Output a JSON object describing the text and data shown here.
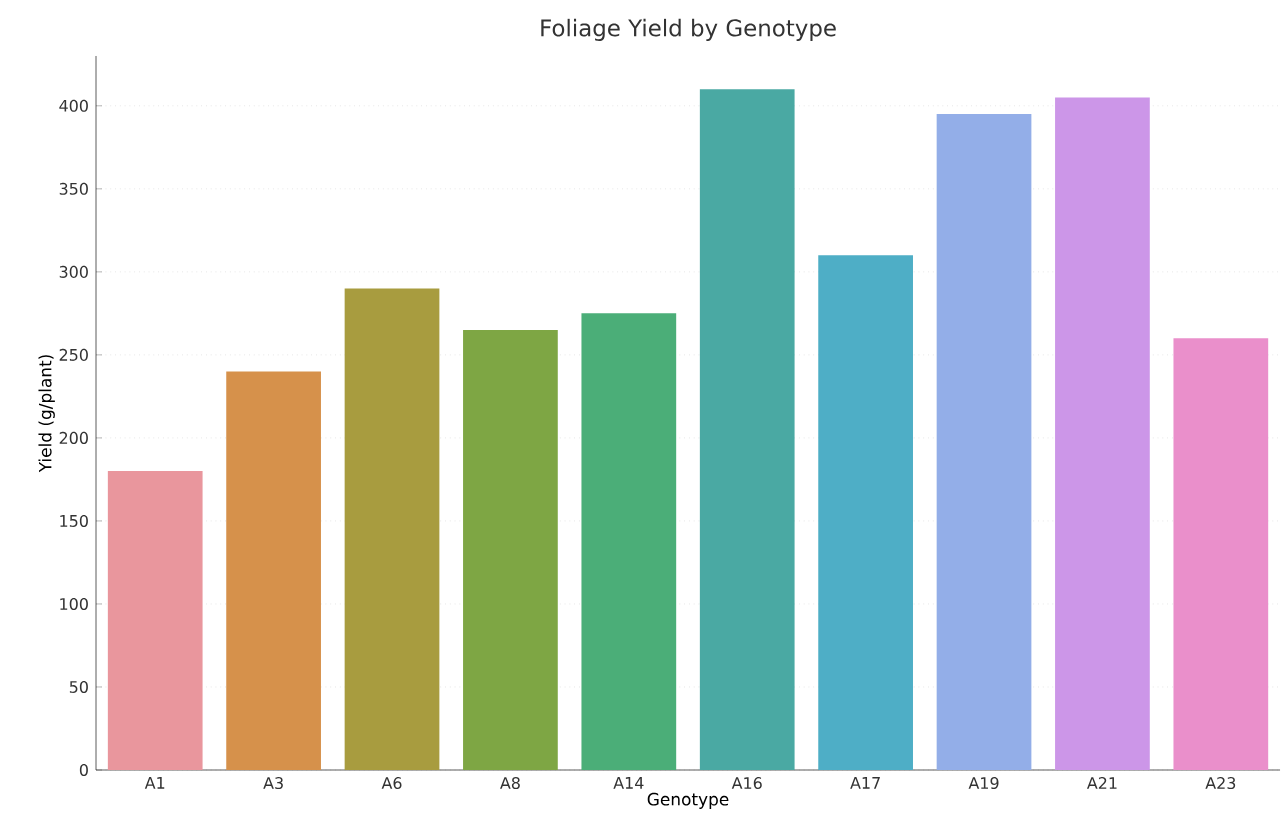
{
  "chart_data": {
    "type": "bar",
    "title": "Foliage Yield by Genotype",
    "xlabel": "Genotype",
    "ylabel": "Yield (g/plant)",
    "categories": [
      "A1",
      "A3",
      "A6",
      "A8",
      "A14",
      "A16",
      "A17",
      "A19",
      "A21",
      "A23"
    ],
    "values": [
      180,
      240,
      290,
      265,
      275,
      410,
      310,
      395,
      405,
      260
    ],
    "colors": [
      "#e9969d",
      "#d6914b",
      "#a89c3f",
      "#7ea644",
      "#4bae78",
      "#4aa9a3",
      "#4eaec6",
      "#93aee8",
      "#cc96e8",
      "#ea8fcb"
    ],
    "ylim": [
      0,
      430
    ],
    "yticks": [
      0,
      50,
      100,
      150,
      200,
      250,
      300,
      350,
      400
    ],
    "grid": "y"
  }
}
